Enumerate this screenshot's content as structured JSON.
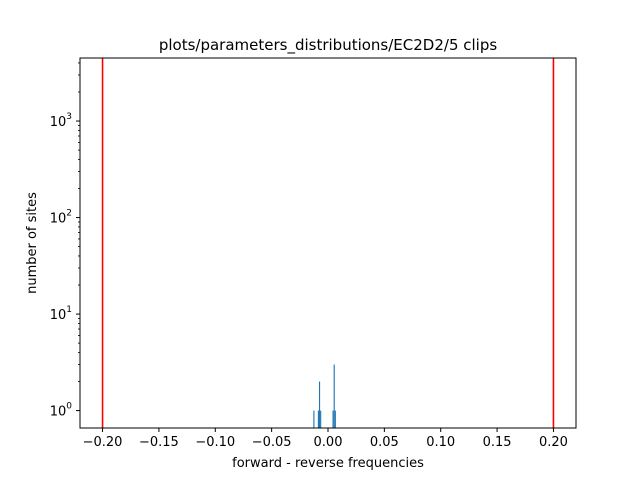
{
  "chart_data": {
    "type": "bar",
    "title": "plots/parameters_distributions/EC2D2/5 clips",
    "xlabel": "forward - reverse frequencies",
    "ylabel": "number of sites",
    "yscale": "log",
    "xlim": [
      -0.22,
      0.22
    ],
    "ylim": [
      0.66,
      4500
    ],
    "grid": false,
    "xticks": [
      -0.2,
      -0.15,
      -0.1,
      -0.05,
      0.0,
      0.05,
      0.1,
      0.15,
      0.2
    ],
    "xtick_labels": [
      "−0.20",
      "−0.15",
      "−0.10",
      "−0.05",
      "0.00",
      "0.05",
      "0.10",
      "0.15",
      "0.20"
    ],
    "yticks": [
      {
        "value": 1,
        "base": "10",
        "exp": "0"
      },
      {
        "value": 10,
        "base": "10",
        "exp": "1"
      },
      {
        "value": 100,
        "base": "10",
        "exp": "2"
      },
      {
        "value": 1000,
        "base": "10",
        "exp": "3"
      }
    ],
    "bar_color": "#1f77b4",
    "bars": [
      {
        "x": -0.0125,
        "width": 0.001,
        "value": 1
      },
      {
        "x": -0.0085,
        "width": 0.001,
        "value": 1
      },
      {
        "x": -0.0075,
        "width": 0.001,
        "value": 2
      },
      {
        "x": -0.0065,
        "width": 0.001,
        "value": 1
      },
      {
        "x": 0.0045,
        "width": 0.001,
        "value": 1
      },
      {
        "x": 0.0055,
        "width": 0.001,
        "value": 3
      },
      {
        "x": 0.0065,
        "width": 0.001,
        "value": 1
      }
    ],
    "threshold_lines": {
      "color": "#ff0000",
      "x": [
        -0.2,
        0.2
      ]
    }
  }
}
